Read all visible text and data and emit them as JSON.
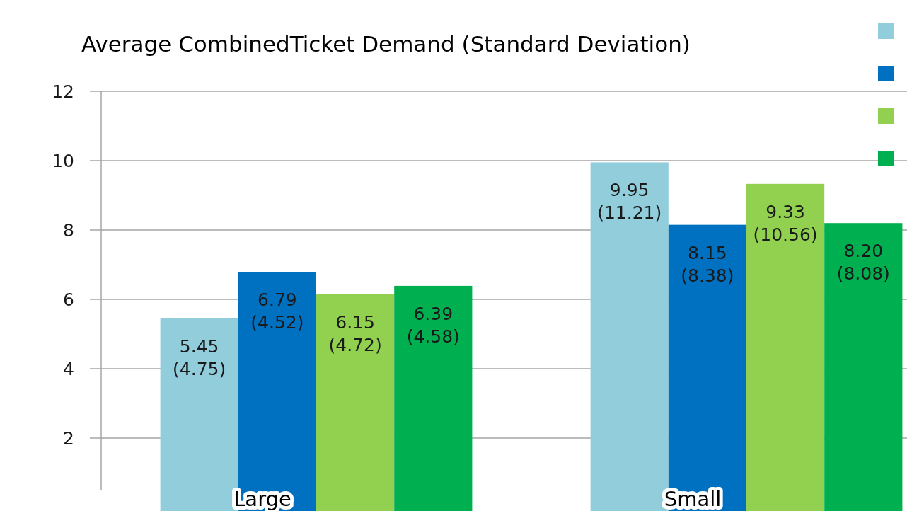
{
  "chart_data": {
    "type": "bar",
    "title": "Average CombinedTicket Demand (Standard Deviation)",
    "categories": [
      "Large",
      "Small"
    ],
    "series": [
      {
        "color": "#92cddc",
        "values": [
          5.45,
          9.95
        ],
        "value_labels": [
          "5.45 (4.75)",
          "9.95 (11.21)"
        ]
      },
      {
        "color": "#0070c0",
        "values": [
          6.79,
          8.15
        ],
        "value_labels": [
          "6.79 (4.52)",
          "8.15 (8.38)"
        ]
      },
      {
        "color": "#92d050",
        "values": [
          6.15,
          9.33
        ],
        "value_labels": [
          "6.15 (4.72)",
          "9.33 (10.56)"
        ]
      },
      {
        "color": "#00b050",
        "values": [
          6.39,
          8.2
        ],
        "value_labels": [
          "6.39 (4.58)",
          "8.20 (8.08)"
        ]
      }
    ],
    "ylim": [
      0.5,
      12
    ],
    "yticks": [
      2,
      4,
      6,
      8,
      10,
      12
    ],
    "grid": "y"
  }
}
